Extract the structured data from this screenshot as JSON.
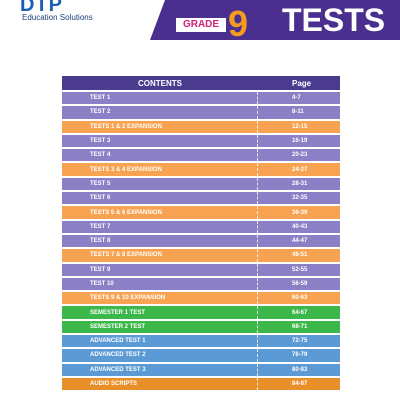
{
  "header": {
    "logo": "DTP",
    "logo_subtitle": "Education Solutions",
    "grade_label": "GRADE",
    "grade": "9",
    "title": "TESTS"
  },
  "table": {
    "columns": [
      "CONTENTS",
      "Page"
    ],
    "rows": [
      {
        "title": "TEST 1",
        "pages": "4-7",
        "color": "#8b7fc6"
      },
      {
        "title": "TEST 2",
        "pages": "8-11",
        "color": "#8b7fc6"
      },
      {
        "title": "TESTS 1 & 2 EXPANSION",
        "pages": "12-15",
        "color": "#f7a352"
      },
      {
        "title": "TEST 3",
        "pages": "16-19",
        "color": "#8b7fc6"
      },
      {
        "title": "TEST 4",
        "pages": "20-23",
        "color": "#8b7fc6"
      },
      {
        "title": "TESTS 3 & 4 EXPANSION",
        "pages": "24-27",
        "color": "#f7a352"
      },
      {
        "title": "TEST 5",
        "pages": "28-31",
        "color": "#8b7fc6"
      },
      {
        "title": "TEST 6",
        "pages": "32-35",
        "color": "#8b7fc6"
      },
      {
        "title": "TESTS 5 & 6 EXPANSION",
        "pages": "36-39",
        "color": "#f7a352"
      },
      {
        "title": "TEST 7",
        "pages": "40-43",
        "color": "#8b7fc6"
      },
      {
        "title": "TEST 8",
        "pages": "44-47",
        "color": "#8b7fc6"
      },
      {
        "title": "TESTS 7 & 8 EXPANSION",
        "pages": "48-51",
        "color": "#f7a352"
      },
      {
        "title": "TEST 9",
        "pages": "52-55",
        "color": "#8b7fc6"
      },
      {
        "title": "TEST 10",
        "pages": "56-59",
        "color": "#8b7fc6"
      },
      {
        "title": "TESTS 9 & 10 EXPANSION",
        "pages": "60-63",
        "color": "#f7a352"
      },
      {
        "title": "SEMESTER 1 TEST",
        "pages": "64-67",
        "color": "#3cb84a"
      },
      {
        "title": "SEMESTER 2 TEST",
        "pages": "68-71",
        "color": "#3cb84a"
      },
      {
        "title": "ADVANCED TEST 1",
        "pages": "72-75",
        "color": "#5c9ad6"
      },
      {
        "title": "ADVANCED TEST 2",
        "pages": "76-79",
        "color": "#5c9ad6"
      },
      {
        "title": "ADVANCED TEST 3",
        "pages": "80-83",
        "color": "#5c9ad6"
      },
      {
        "title": "AUDIO SCRIPTS",
        "pages": "84-87",
        "color": "#e88f2a"
      }
    ]
  }
}
